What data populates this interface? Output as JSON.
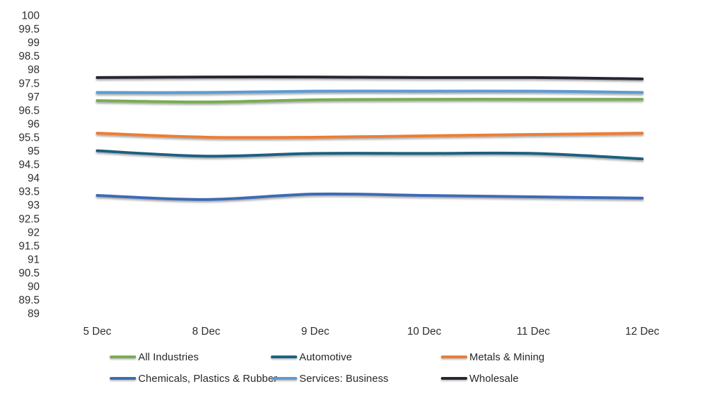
{
  "chart_data": {
    "type": "line",
    "title": "",
    "xlabel": "",
    "ylabel": "",
    "x": [
      "5 Dec",
      "8 Dec",
      "9 Dec",
      "10 Dec",
      "11 Dec",
      "12 Dec"
    ],
    "series": [
      {
        "name": "All Industries",
        "color": "#78AD51",
        "values": [
          96.85,
          96.8,
          96.88,
          96.9,
          96.9,
          96.9
        ]
      },
      {
        "name": "Automotive",
        "color": "#1F617F",
        "values": [
          95.0,
          94.8,
          94.9,
          94.9,
          94.9,
          94.7
        ]
      },
      {
        "name": "Metals & Mining",
        "color": "#ED7D31",
        "values": [
          95.65,
          95.5,
          95.5,
          95.55,
          95.6,
          95.65
        ]
      },
      {
        "name": "Chemicals, Plastics & Rubber",
        "color": "#3E6BB5",
        "values": [
          93.35,
          93.2,
          93.4,
          93.35,
          93.3,
          93.25
        ]
      },
      {
        "name": "Services: Business",
        "color": "#5B9BD5",
        "values": [
          97.15,
          97.15,
          97.2,
          97.2,
          97.2,
          97.15
        ]
      },
      {
        "name": "Wholesale",
        "color": "#262633",
        "values": [
          97.7,
          97.72,
          97.72,
          97.7,
          97.7,
          97.65
        ]
      }
    ],
    "ylim": [
      89,
      100
    ],
    "ytick_step": 0.5,
    "grid": true,
    "smoothed_lines": true,
    "legend_position": "bottom",
    "legend_rows": [
      [
        "All Industries",
        "Automotive",
        "Metals & Mining"
      ],
      [
        "Chemicals, Plastics & Rubber",
        "Services: Business",
        "Wholesale"
      ]
    ],
    "grid_color": "#DBDBDB",
    "tick_label_color": "#2e2e2e"
  }
}
